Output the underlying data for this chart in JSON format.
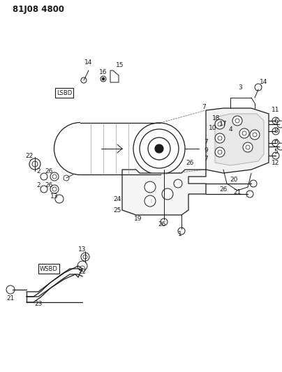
{
  "title": "81J08 4800",
  "bg_color": "#ffffff",
  "fig_width": 4.04,
  "fig_height": 5.33,
  "dpi": 100,
  "line_color": "#1a1a1a",
  "label_color": "#1a1a1a",
  "label_fs": 6.5,
  "title_fs": 8.5
}
